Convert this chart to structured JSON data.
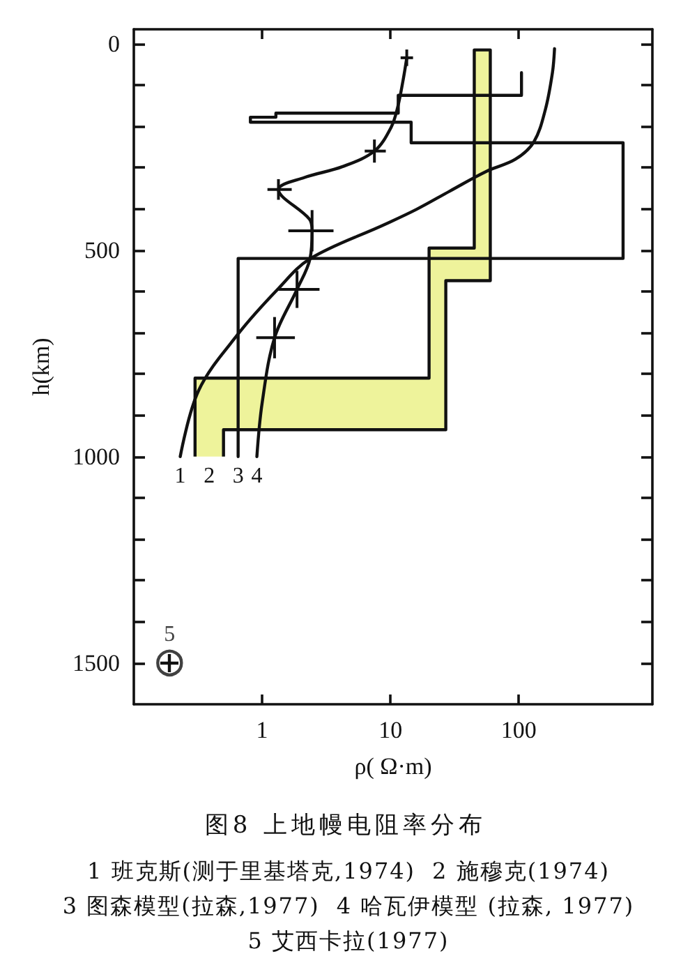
{
  "chart_data": {
    "type": "line",
    "title": "图8 上地幔电阻率分布",
    "xlabel": "ρ( Ω·m)",
    "ylabel": "h(km)",
    "annotations": [
      "1 班克斯(测于里基塔克,1974)",
      "2 施穆克(1974)",
      "3 图森模型(拉森,1977)",
      "4 哈瓦伊模型 (拉森, 1977)",
      "5 艾西卡拉(1977)"
    ],
    "log": "x",
    "xlim": [
      0.1,
      1100
    ],
    "xticks": [
      1,
      10,
      100
    ],
    "ylim": [
      1600,
      -35
    ],
    "yticks": [
      0,
      {
        "value": 100,
        "label": null
      },
      {
        "value": 200,
        "label": null
      },
      {
        "value": 300,
        "label": null
      },
      {
        "value": 400,
        "label": null
      },
      500,
      {
        "value": 600,
        "label": null
      },
      {
        "value": 700,
        "label": null
      },
      {
        "value": 800,
        "label": null
      },
      {
        "value": 900,
        "label": null
      },
      1000,
      {
        "value": 1100,
        "label": null
      },
      {
        "value": 1200,
        "label": null
      },
      {
        "value": 1300,
        "label": null
      },
      {
        "value": 1400,
        "label": null
      },
      1500
    ],
    "marker": "none",
    "series": [
      {
        "name": "1",
        "color": "#111111",
        "x": [
          0.23,
          0.32,
          0.65,
          1.32,
          2.36,
          9,
          16,
          29,
          56,
          94,
          131,
          161,
          183,
          190
        ],
        "values": [
          1000,
          840,
          703,
          595,
          521,
          438,
          401,
          357,
          309,
          280,
          238,
          160,
          70,
          12
        ]
      },
      {
        "type": "area",
        "name": "2",
        "color": "#eef39b",
        "x": [
          0.3,
          0.3,
          20,
          20,
          45,
          45,
          60,
          60,
          27,
          27,
          0.5,
          0.5
        ],
        "values": [
          1000,
          810,
          810,
          495,
          495,
          15,
          15,
          574,
          574,
          935,
          935,
          1000
        ]
      },
      {
        "type": "step",
        "name": "3",
        "color": "#111111",
        "x": [
          0.65,
          0.65,
          650,
          650,
          14.5,
          14.5,
          0.81,
          0.81,
          1.28,
          1.28,
          11.5,
          11.5,
          105,
          105
        ],
        "values": [
          1000,
          520,
          520,
          240,
          240,
          190,
          190,
          178,
          178,
          168,
          168,
          125,
          125,
          70
        ]
      },
      {
        "name": "4",
        "color": "#111111",
        "x": [
          0.91,
          1.0,
          1.25,
          1.87,
          2.36,
          2.45,
          2.34,
          1.34,
          2.14,
          4.2,
          7.5,
          10.1,
          11.4,
          12.6,
          13.4
        ],
        "values": [
          1000,
          870,
          712,
          595,
          521,
          453,
          425,
          353,
          324,
          298,
          260,
          203,
          153,
          85,
          34
        ],
        "errors": [
          null,
          null,
          50,
          45,
          null,
          50,
          null,
          25,
          null,
          null,
          28,
          null,
          null,
          null,
          20
        ],
        "xerrors": [
          null,
          null,
          [
            0.9,
            1.8
          ],
          [
            1.3,
            2.8
          ],
          null,
          [
            1.6,
            3.6
          ],
          null,
          [
            1.1,
            1.7
          ],
          null,
          null,
          [
            6.3,
            9.2
          ],
          null,
          null,
          null,
          [
            12,
            15
          ]
        ]
      },
      {
        "type": "scatter",
        "name": "5",
        "color": "#111111",
        "marker": "circle",
        "x": [
          0.19
        ],
        "values": [
          1500
        ]
      }
    ]
  }
}
